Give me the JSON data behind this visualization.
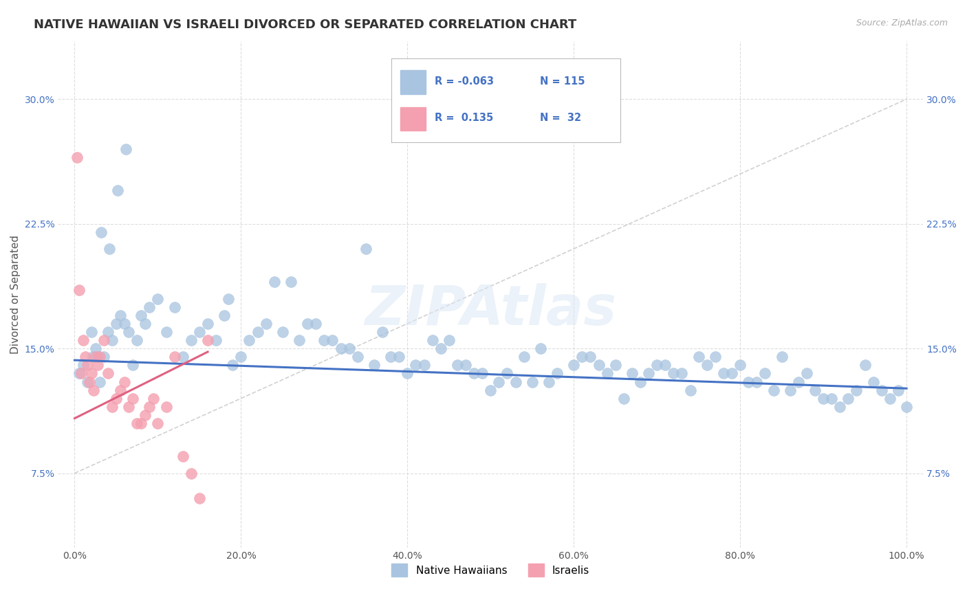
{
  "title": "NATIVE HAWAIIAN VS ISRAELI DIVORCED OR SEPARATED CORRELATION CHART",
  "source": "Source: ZipAtlas.com",
  "ylabel": "Divorced or Separated",
  "x_ticks": [
    0.0,
    20.0,
    40.0,
    60.0,
    80.0,
    100.0
  ],
  "x_tick_labels": [
    "0.0%",
    "20.0%",
    "40.0%",
    "60.0%",
    "80.0%",
    "100.0%"
  ],
  "y_ticks": [
    0.075,
    0.15,
    0.225,
    0.3
  ],
  "y_tick_labels": [
    "7.5%",
    "15.0%",
    "22.5%",
    "30.0%"
  ],
  "xlim": [
    -2,
    102
  ],
  "ylim": [
    0.03,
    0.335
  ],
  "legend_blue_r": "-0.063",
  "legend_blue_n": "115",
  "legend_pink_r": "0.135",
  "legend_pink_n": "32",
  "legend_label_blue": "Native Hawaiians",
  "legend_label_pink": "Israelis",
  "blue_color": "#a8c4e0",
  "pink_color": "#f4a0b0",
  "blue_line_color": "#4472c4",
  "pink_line_color": "#e06080",
  "watermark": "ZIPAtlas",
  "blue_scatter_x": [
    0.5,
    1.0,
    1.5,
    2.0,
    2.5,
    3.0,
    3.5,
    4.0,
    4.5,
    5.0,
    5.5,
    6.0,
    6.5,
    7.0,
    8.0,
    9.0,
    10.0,
    11.0,
    12.0,
    13.0,
    14.0,
    15.0,
    16.0,
    17.0,
    18.0,
    19.0,
    20.0,
    21.0,
    22.0,
    23.0,
    25.0,
    27.0,
    30.0,
    32.0,
    34.0,
    36.0,
    38.0,
    40.0,
    42.0,
    44.0,
    46.0,
    48.0,
    50.0,
    52.0,
    54.0,
    56.0,
    58.0,
    60.0,
    62.0,
    64.0,
    66.0,
    68.0,
    70.0,
    72.0,
    74.0,
    76.0,
    78.0,
    80.0,
    82.0,
    84.0,
    86.0,
    88.0,
    90.0,
    92.0,
    94.0,
    96.0,
    98.0,
    100.0,
    35.0,
    45.0,
    55.0,
    65.0,
    75.0,
    85.0,
    95.0,
    28.0,
    33.0,
    37.0,
    43.0,
    47.0,
    53.0,
    57.0,
    63.0,
    67.0,
    73.0,
    77.0,
    83.0,
    87.0,
    93.0,
    97.0,
    2.2,
    2.8,
    7.5,
    8.5,
    18.5,
    24.0,
    26.0,
    29.0,
    31.0,
    39.0,
    41.0,
    49.0,
    51.0,
    61.0,
    69.0,
    71.0,
    79.0,
    81.0,
    89.0,
    91.0,
    99.0,
    3.2,
    4.2,
    5.2,
    6.2
  ],
  "blue_scatter_y": [
    0.135,
    0.14,
    0.13,
    0.16,
    0.15,
    0.13,
    0.145,
    0.16,
    0.155,
    0.165,
    0.17,
    0.165,
    0.16,
    0.14,
    0.17,
    0.175,
    0.18,
    0.16,
    0.175,
    0.145,
    0.155,
    0.16,
    0.165,
    0.155,
    0.17,
    0.14,
    0.145,
    0.155,
    0.16,
    0.165,
    0.16,
    0.155,
    0.155,
    0.15,
    0.145,
    0.14,
    0.145,
    0.135,
    0.14,
    0.15,
    0.14,
    0.135,
    0.125,
    0.135,
    0.145,
    0.15,
    0.135,
    0.14,
    0.145,
    0.135,
    0.12,
    0.13,
    0.14,
    0.135,
    0.125,
    0.14,
    0.135,
    0.14,
    0.13,
    0.125,
    0.125,
    0.135,
    0.12,
    0.115,
    0.125,
    0.13,
    0.12,
    0.115,
    0.21,
    0.155,
    0.13,
    0.14,
    0.145,
    0.145,
    0.14,
    0.165,
    0.15,
    0.16,
    0.155,
    0.14,
    0.13,
    0.13,
    0.14,
    0.135,
    0.135,
    0.145,
    0.135,
    0.13,
    0.12,
    0.125,
    0.145,
    0.145,
    0.155,
    0.165,
    0.18,
    0.19,
    0.19,
    0.165,
    0.155,
    0.145,
    0.14,
    0.135,
    0.13,
    0.145,
    0.135,
    0.14,
    0.135,
    0.13,
    0.125,
    0.12,
    0.125,
    0.22,
    0.21,
    0.245,
    0.27
  ],
  "pink_scatter_x": [
    0.3,
    0.5,
    0.8,
    1.0,
    1.3,
    1.5,
    1.8,
    2.0,
    2.3,
    2.5,
    2.8,
    3.0,
    3.5,
    4.0,
    4.5,
    5.0,
    5.5,
    6.0,
    6.5,
    7.0,
    7.5,
    8.0,
    8.5,
    9.0,
    9.5,
    10.0,
    11.0,
    12.0,
    13.0,
    14.0,
    15.0,
    16.0
  ],
  "pink_scatter_y": [
    0.265,
    0.185,
    0.135,
    0.155,
    0.145,
    0.14,
    0.13,
    0.135,
    0.125,
    0.145,
    0.14,
    0.145,
    0.155,
    0.135,
    0.115,
    0.12,
    0.125,
    0.13,
    0.115,
    0.12,
    0.105,
    0.105,
    0.11,
    0.115,
    0.12,
    0.105,
    0.115,
    0.145,
    0.085,
    0.075,
    0.06,
    0.155
  ],
  "blue_trend_x": [
    0,
    100
  ],
  "blue_trend_y": [
    0.143,
    0.126
  ],
  "pink_trend_x": [
    0,
    16
  ],
  "pink_trend_y": [
    0.108,
    0.148
  ],
  "diag_line_x": [
    0,
    100
  ],
  "diag_line_y": [
    0.075,
    0.3
  ],
  "title_fontsize": 13,
  "axis_label_fontsize": 11,
  "tick_fontsize": 10,
  "background_color": "#ffffff",
  "grid_color": "#dddddd"
}
